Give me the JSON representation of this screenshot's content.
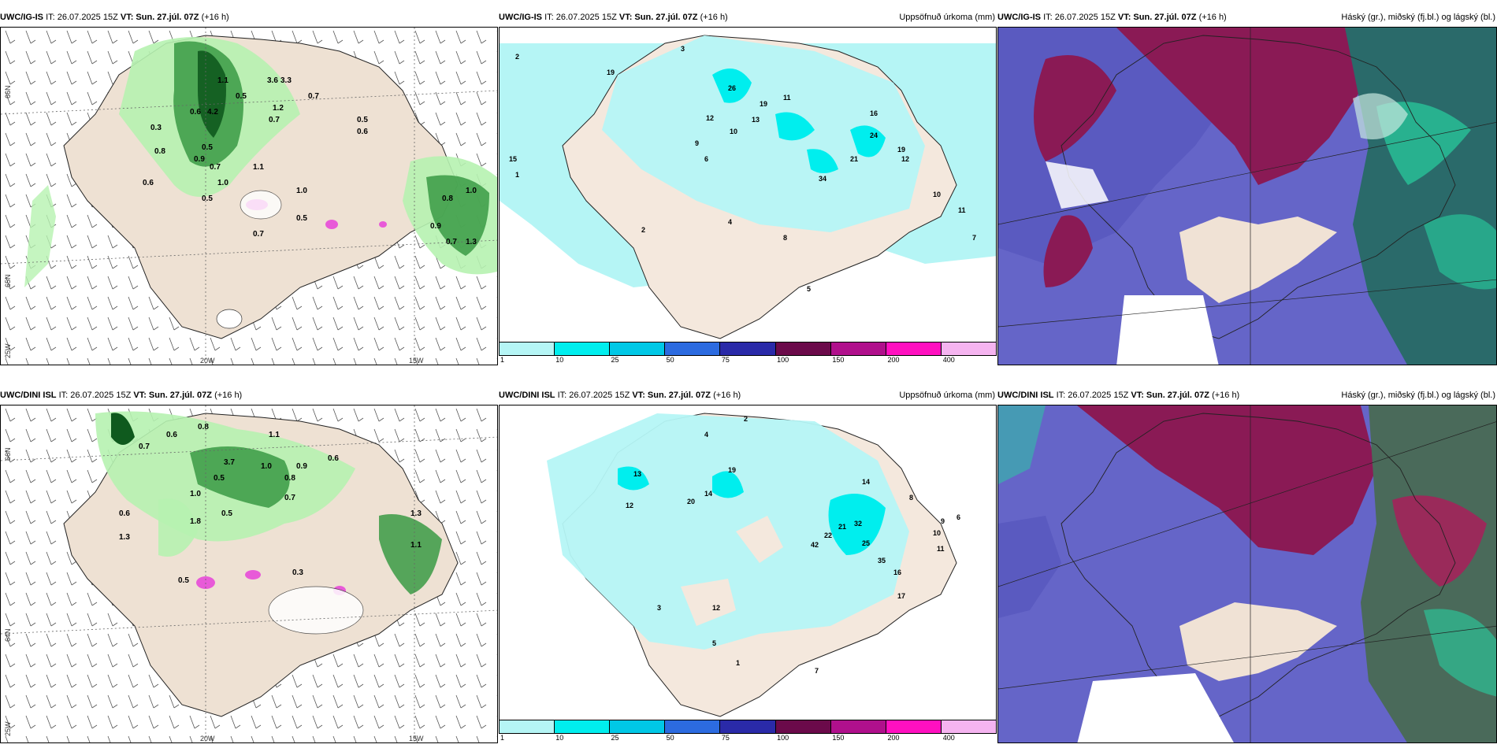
{
  "panels": {
    "p1": {
      "model": "UWC/IG-IS",
      "it": "IT: 26.07.2025 15Z",
      "vt_label": "VT:",
      "vt": "Sun. 27.júl. 07Z",
      "lead": "(+16 h)",
      "right": ""
    },
    "p2": {
      "model": "UWC/IG-IS",
      "it": "IT: 26.07.2025 15Z",
      "vt_label": "VT:",
      "vt": "Sun. 27.júl. 07Z",
      "lead": "(+16 h)",
      "right": "Uppsöfnuð úrkoma (mm)"
    },
    "p3": {
      "model": "UWC/IG-IS",
      "it": "IT: 26.07.2025 15Z",
      "vt_label": "VT:",
      "vt": "Sun. 27.júl. 07Z",
      "lead": "(+16 h)",
      "right": "Háský (gr.), miðský (fj.bl.) og lágský (bl.)"
    },
    "p4": {
      "model": "UWC/DINI ISL",
      "it": "IT: 26.07.2025 15Z",
      "vt_label": "VT:",
      "vt": "Sun. 27.júl. 07Z",
      "lead": "(+16 h)",
      "right": ""
    },
    "p5": {
      "model": "UWC/DINI ISL",
      "it": "IT: 26.07.2025 15Z",
      "vt_label": "VT:",
      "vt": "Sun. 27.júl. 07Z",
      "lead": "(+16 h)",
      "right": "Uppsöfnuð úrkoma (mm)"
    },
    "p6": {
      "model": "UWC/DINI ISL",
      "it": "IT: 26.07.2025 15Z",
      "vt_label": "VT:",
      "vt": "Sun. 27.júl. 07Z",
      "lead": "(+16 h)",
      "right": "Háský (gr.), miðský (fj.bl.) og lágský (bl.)"
    }
  },
  "axes": {
    "lat66": "66N",
    "lat64": "64N",
    "lat65": "65N",
    "lon20": "20W",
    "lon15": "15W",
    "lon25": "25W"
  },
  "colorbar": {
    "ticks": [
      "1",
      "10",
      "25",
      "50",
      "75",
      "100",
      "150",
      "200",
      "400"
    ],
    "colors": [
      "#b5f5f5",
      "#00eeee",
      "#00c8e6",
      "#2c6be0",
      "#2a2aa8",
      "#6b0a4a",
      "#b0108c",
      "#ff10c0",
      "#f5b4f0"
    ]
  },
  "labels": {
    "top_left": [
      "0.6",
      "4.2",
      "1.1",
      "0.5",
      "3.6",
      "3.3",
      "0.7",
      "1.2",
      "0.5",
      "0.6",
      "0.3",
      "0.8",
      "0.5",
      "0.9",
      "0.7",
      "1.0",
      "1.1",
      "0.5",
      "0.7",
      "1.0",
      "0.5",
      "0.8",
      "1.0",
      "0.7",
      "0.9",
      "0.7",
      "1.3",
      "0.6"
    ],
    "top_mid": [
      "3",
      "2",
      "19",
      "26",
      "19",
      "16",
      "11",
      "12",
      "13",
      "10",
      "9",
      "6",
      "34",
      "21",
      "24",
      "19",
      "12",
      "8",
      "7",
      "4",
      "5",
      "2",
      "1",
      "15",
      "10",
      "11"
    ],
    "bottom_left": [
      "0.6",
      "0.8",
      "0.7",
      "1.1",
      "3.7",
      "1.0",
      "0.5",
      "0.9",
      "0.6",
      "0.8",
      "1.3",
      "1.1",
      "0.7",
      "0.5",
      "1.0",
      "1.3",
      "0.6",
      "1.8",
      "0.5",
      "0.3"
    ],
    "bottom_mid": [
      "2",
      "4",
      "13",
      "12",
      "20",
      "14",
      "19",
      "22",
      "21",
      "32",
      "42",
      "25",
      "35",
      "14",
      "16",
      "17",
      "10",
      "9",
      "6",
      "3",
      "5",
      "12",
      "1",
      "7",
      "11",
      "8"
    ]
  }
}
